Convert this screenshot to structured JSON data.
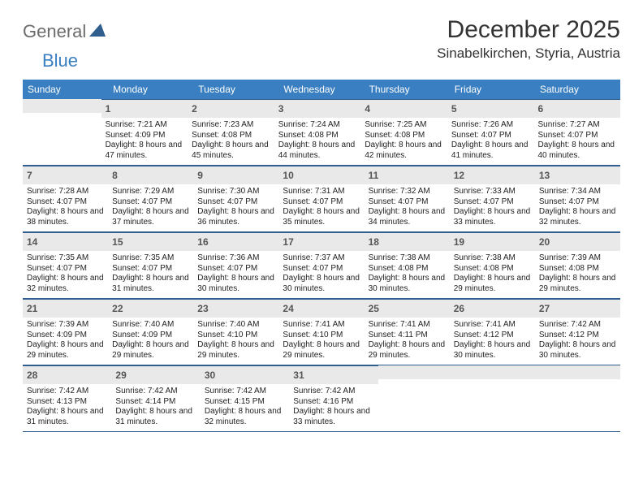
{
  "logo": {
    "text1": "General",
    "text2": "Blue"
  },
  "title": "December 2025",
  "location": "Sinabelkirchen, Styria, Austria",
  "header_bg": "#3a7fc1",
  "daynum_bg": "#e9e9e9",
  "border_color": "#2f5e8f",
  "dow": [
    "Sunday",
    "Monday",
    "Tuesday",
    "Wednesday",
    "Thursday",
    "Friday",
    "Saturday"
  ],
  "weeks": [
    [
      {
        "empty": true
      },
      {
        "num": "1",
        "sunrise": "Sunrise: 7:21 AM",
        "sunset": "Sunset: 4:09 PM",
        "daylight": "Daylight: 8 hours and 47 minutes."
      },
      {
        "num": "2",
        "sunrise": "Sunrise: 7:23 AM",
        "sunset": "Sunset: 4:08 PM",
        "daylight": "Daylight: 8 hours and 45 minutes."
      },
      {
        "num": "3",
        "sunrise": "Sunrise: 7:24 AM",
        "sunset": "Sunset: 4:08 PM",
        "daylight": "Daylight: 8 hours and 44 minutes."
      },
      {
        "num": "4",
        "sunrise": "Sunrise: 7:25 AM",
        "sunset": "Sunset: 4:08 PM",
        "daylight": "Daylight: 8 hours and 42 minutes."
      },
      {
        "num": "5",
        "sunrise": "Sunrise: 7:26 AM",
        "sunset": "Sunset: 4:07 PM",
        "daylight": "Daylight: 8 hours and 41 minutes."
      },
      {
        "num": "6",
        "sunrise": "Sunrise: 7:27 AM",
        "sunset": "Sunset: 4:07 PM",
        "daylight": "Daylight: 8 hours and 40 minutes."
      }
    ],
    [
      {
        "num": "7",
        "sunrise": "Sunrise: 7:28 AM",
        "sunset": "Sunset: 4:07 PM",
        "daylight": "Daylight: 8 hours and 38 minutes."
      },
      {
        "num": "8",
        "sunrise": "Sunrise: 7:29 AM",
        "sunset": "Sunset: 4:07 PM",
        "daylight": "Daylight: 8 hours and 37 minutes."
      },
      {
        "num": "9",
        "sunrise": "Sunrise: 7:30 AM",
        "sunset": "Sunset: 4:07 PM",
        "daylight": "Daylight: 8 hours and 36 minutes."
      },
      {
        "num": "10",
        "sunrise": "Sunrise: 7:31 AM",
        "sunset": "Sunset: 4:07 PM",
        "daylight": "Daylight: 8 hours and 35 minutes."
      },
      {
        "num": "11",
        "sunrise": "Sunrise: 7:32 AM",
        "sunset": "Sunset: 4:07 PM",
        "daylight": "Daylight: 8 hours and 34 minutes."
      },
      {
        "num": "12",
        "sunrise": "Sunrise: 7:33 AM",
        "sunset": "Sunset: 4:07 PM",
        "daylight": "Daylight: 8 hours and 33 minutes."
      },
      {
        "num": "13",
        "sunrise": "Sunrise: 7:34 AM",
        "sunset": "Sunset: 4:07 PM",
        "daylight": "Daylight: 8 hours and 32 minutes."
      }
    ],
    [
      {
        "num": "14",
        "sunrise": "Sunrise: 7:35 AM",
        "sunset": "Sunset: 4:07 PM",
        "daylight": "Daylight: 8 hours and 32 minutes."
      },
      {
        "num": "15",
        "sunrise": "Sunrise: 7:35 AM",
        "sunset": "Sunset: 4:07 PM",
        "daylight": "Daylight: 8 hours and 31 minutes."
      },
      {
        "num": "16",
        "sunrise": "Sunrise: 7:36 AM",
        "sunset": "Sunset: 4:07 PM",
        "daylight": "Daylight: 8 hours and 30 minutes."
      },
      {
        "num": "17",
        "sunrise": "Sunrise: 7:37 AM",
        "sunset": "Sunset: 4:07 PM",
        "daylight": "Daylight: 8 hours and 30 minutes."
      },
      {
        "num": "18",
        "sunrise": "Sunrise: 7:38 AM",
        "sunset": "Sunset: 4:08 PM",
        "daylight": "Daylight: 8 hours and 30 minutes."
      },
      {
        "num": "19",
        "sunrise": "Sunrise: 7:38 AM",
        "sunset": "Sunset: 4:08 PM",
        "daylight": "Daylight: 8 hours and 29 minutes."
      },
      {
        "num": "20",
        "sunrise": "Sunrise: 7:39 AM",
        "sunset": "Sunset: 4:08 PM",
        "daylight": "Daylight: 8 hours and 29 minutes."
      }
    ],
    [
      {
        "num": "21",
        "sunrise": "Sunrise: 7:39 AM",
        "sunset": "Sunset: 4:09 PM",
        "daylight": "Daylight: 8 hours and 29 minutes."
      },
      {
        "num": "22",
        "sunrise": "Sunrise: 7:40 AM",
        "sunset": "Sunset: 4:09 PM",
        "daylight": "Daylight: 8 hours and 29 minutes."
      },
      {
        "num": "23",
        "sunrise": "Sunrise: 7:40 AM",
        "sunset": "Sunset: 4:10 PM",
        "daylight": "Daylight: 8 hours and 29 minutes."
      },
      {
        "num": "24",
        "sunrise": "Sunrise: 7:41 AM",
        "sunset": "Sunset: 4:10 PM",
        "daylight": "Daylight: 8 hours and 29 minutes."
      },
      {
        "num": "25",
        "sunrise": "Sunrise: 7:41 AM",
        "sunset": "Sunset: 4:11 PM",
        "daylight": "Daylight: 8 hours and 29 minutes."
      },
      {
        "num": "26",
        "sunrise": "Sunrise: 7:41 AM",
        "sunset": "Sunset: 4:12 PM",
        "daylight": "Daylight: 8 hours and 30 minutes."
      },
      {
        "num": "27",
        "sunrise": "Sunrise: 7:42 AM",
        "sunset": "Sunset: 4:12 PM",
        "daylight": "Daylight: 8 hours and 30 minutes."
      }
    ],
    [
      {
        "num": "28",
        "sunrise": "Sunrise: 7:42 AM",
        "sunset": "Sunset: 4:13 PM",
        "daylight": "Daylight: 8 hours and 31 minutes."
      },
      {
        "num": "29",
        "sunrise": "Sunrise: 7:42 AM",
        "sunset": "Sunset: 4:14 PM",
        "daylight": "Daylight: 8 hours and 31 minutes."
      },
      {
        "num": "30",
        "sunrise": "Sunrise: 7:42 AM",
        "sunset": "Sunset: 4:15 PM",
        "daylight": "Daylight: 8 hours and 32 minutes."
      },
      {
        "num": "31",
        "sunrise": "Sunrise: 7:42 AM",
        "sunset": "Sunset: 4:16 PM",
        "daylight": "Daylight: 8 hours and 33 minutes."
      },
      {
        "empty": true
      },
      {
        "empty": true
      },
      {
        "empty": true
      }
    ]
  ]
}
